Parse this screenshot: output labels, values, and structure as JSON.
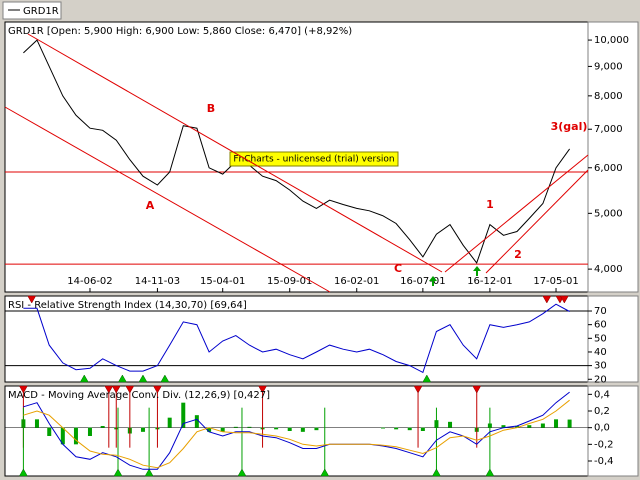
{
  "tab": "GRD1R",
  "chart_data": [
    {
      "type": "line",
      "title": "GRD1R [Open: 5,900  High: 6,900  Low: 5,860  Close: 6,470] (+8,92%)",
      "watermark": "FnCharts - unlicensed (trial) version",
      "annotations": [
        "A",
        "B",
        "C",
        "1",
        "2",
        "3(gal)"
      ],
      "x": [
        "14-01-01",
        "14-02-01",
        "14-03-01",
        "14-04-01",
        "14-05-01",
        "14-06-02",
        "14-07-01",
        "14-08-01",
        "14-09-01",
        "14-10-01",
        "14-11-03",
        "14-12-01",
        "15-01-01",
        "15-02-01",
        "15-03-01",
        "15-04-01",
        "15-05-01",
        "15-06-01",
        "15-07-01",
        "15-08-01",
        "15-09-01",
        "15-10-01",
        "15-11-01",
        "15-12-01",
        "16-01-01",
        "16-02-01",
        "16-03-01",
        "16-04-01",
        "16-05-01",
        "16-06-01",
        "16-07-01",
        "16-08-01",
        "16-09-01",
        "16-10-01",
        "16-11-01",
        "16-12-01",
        "17-01-01",
        "17-02-01",
        "17-03-01",
        "17-04-01",
        "17-05-01",
        "17-06-01"
      ],
      "values": [
        9500,
        10000,
        9000,
        8000,
        7400,
        7030,
        6970,
        6700,
        6200,
        5800,
        5600,
        5900,
        7100,
        7030,
        6000,
        5850,
        6150,
        6060,
        5800,
        5700,
        5490,
        5250,
        5100,
        5270,
        5180,
        5100,
        5050,
        4950,
        4800,
        4500,
        4200,
        4600,
        4780,
        4400,
        4100,
        4780,
        4580,
        4650,
        4900,
        5200,
        6000,
        6470
      ],
      "color": "#000000",
      "xlim": [
        "13-11-20",
        "17-07-13"
      ],
      "xticks": [
        "14-06-02",
        "14-11-03",
        "15-04-01",
        "15-09-01",
        "16-02-01",
        "16-07-01",
        "16-12-01",
        "17-05-01"
      ],
      "ylim": [
        3650,
        10750
      ],
      "log_scale": true,
      "yticks": [
        {
          "value": 4000,
          "label": "4,000"
        },
        {
          "value": 5000,
          "label": "5,000"
        },
        {
          "value": 6000,
          "label": "6,000"
        },
        {
          "value": 7000,
          "label": "7,000"
        },
        {
          "value": 8000,
          "label": "8,000"
        },
        {
          "value": 9000,
          "label": "9,000"
        },
        {
          "value": 10000,
          "label": "10,000"
        }
      ],
      "reference_lines": [
        5900,
        4080
      ],
      "reference_color": "#e00000"
    },
    {
      "type": "line",
      "title": "RSI - Relative Strength Index (14,30,70) [69,64]",
      "x": [
        "14-01-01",
        "14-02-01",
        "14-03-01",
        "14-04-01",
        "14-05-01",
        "14-06-02",
        "14-07-01",
        "14-08-01",
        "14-09-01",
        "14-10-01",
        "14-11-03",
        "14-12-01",
        "15-01-01",
        "15-02-01",
        "15-03-01",
        "15-04-01",
        "15-05-01",
        "15-06-01",
        "15-07-01",
        "15-08-01",
        "15-09-01",
        "15-10-01",
        "15-11-01",
        "15-12-01",
        "16-01-01",
        "16-02-01",
        "16-03-01",
        "16-04-01",
        "16-05-01",
        "16-06-01",
        "16-07-01",
        "16-08-01",
        "16-09-01",
        "16-10-01",
        "16-11-01",
        "16-12-01",
        "17-01-01",
        "17-02-01",
        "17-03-01",
        "17-04-01",
        "17-05-01",
        "17-06-01"
      ],
      "values": [
        72,
        72,
        45,
        32,
        27,
        28,
        35,
        30,
        26,
        26,
        30,
        45,
        62,
        60,
        40,
        48,
        52,
        45,
        40,
        42,
        38,
        35,
        40,
        45,
        42,
        40,
        42,
        38,
        33,
        30,
        25,
        55,
        60,
        45,
        35,
        60,
        58,
        60,
        62,
        68,
        75,
        69.64
      ],
      "color": "#0000cc",
      "xlim": [
        "13-11-20",
        "17-07-13"
      ],
      "ylim": [
        18,
        81
      ],
      "yticks": [
        20,
        30,
        40,
        50,
        60,
        70
      ],
      "reference_lines": [
        30,
        70
      ],
      "reference_color": "#000000",
      "sell_signals": [
        "14-01-20",
        "17-04-10",
        "17-05-10",
        "17-05-20"
      ],
      "buy_signals": [
        "14-05-20",
        "14-08-15",
        "14-10-01",
        "14-11-20",
        "16-07-10"
      ]
    },
    {
      "type": "macd",
      "title": "MACD - Moving Average Conv. Div. (12,26,9) [0,427]",
      "x": [
        "14-01-01",
        "14-02-01",
        "14-03-01",
        "14-04-01",
        "14-05-01",
        "14-06-02",
        "14-07-01",
        "14-08-01",
        "14-09-01",
        "14-10-01",
        "14-11-03",
        "14-12-01",
        "15-01-01",
        "15-02-01",
        "15-03-01",
        "15-04-01",
        "15-05-01",
        "15-06-01",
        "15-07-01",
        "15-08-01",
        "15-09-01",
        "15-10-01",
        "15-11-01",
        "15-12-01",
        "16-01-01",
        "16-02-01",
        "16-03-01",
        "16-04-01",
        "16-05-01",
        "16-06-01",
        "16-07-01",
        "16-08-01",
        "16-09-01",
        "16-10-01",
        "16-11-01",
        "16-12-01",
        "17-01-01",
        "17-02-01",
        "17-03-01",
        "17-04-01",
        "17-05-01",
        "17-06-01"
      ],
      "series": [
        {
          "color": "#0000cc",
          "values": [
            0.25,
            0.3,
            0.05,
            -0.2,
            -0.35,
            -0.38,
            -0.3,
            -0.35,
            -0.45,
            -0.5,
            -0.5,
            -0.3,
            0.05,
            0.1,
            -0.05,
            -0.1,
            -0.05,
            -0.05,
            -0.1,
            -0.12,
            -0.18,
            -0.25,
            -0.25,
            -0.2,
            -0.2,
            -0.2,
            -0.2,
            -0.22,
            -0.25,
            -0.3,
            -0.35,
            -0.15,
            -0.05,
            -0.1,
            -0.2,
            -0.05,
            0.0,
            0.02,
            0.08,
            0.15,
            0.3,
            0.427
          ]
        },
        {
          "color": "#e8a000",
          "values": [
            0.15,
            0.2,
            0.15,
            0.0,
            -0.15,
            -0.28,
            -0.32,
            -0.33,
            -0.38,
            -0.45,
            -0.48,
            -0.42,
            -0.25,
            -0.05,
            0.0,
            -0.05,
            -0.06,
            -0.06,
            -0.08,
            -0.1,
            -0.14,
            -0.2,
            -0.22,
            -0.2,
            -0.2,
            -0.2,
            -0.2,
            -0.21,
            -0.23,
            -0.27,
            -0.31,
            -0.24,
            -0.12,
            -0.1,
            -0.15,
            -0.1,
            -0.03,
            0.0,
            0.05,
            0.1,
            0.2,
            0.33
          ]
        }
      ],
      "histogram": {
        "color": "#00a000",
        "values": [
          0.1,
          0.1,
          -0.1,
          -0.2,
          -0.2,
          -0.1,
          0.02,
          -0.02,
          -0.07,
          -0.05,
          -0.02,
          0.12,
          0.3,
          0.15,
          -0.05,
          -0.05,
          0.01,
          0.01,
          -0.02,
          -0.02,
          -0.04,
          -0.05,
          -0.03,
          0,
          0,
          0,
          0,
          -0.01,
          -0.02,
          -0.03,
          -0.04,
          0.09,
          0.07,
          0,
          -0.05,
          0.05,
          0.03,
          0.02,
          0.03,
          0.05,
          0.1,
          0.097
        ]
      },
      "xlim": [
        "13-11-20",
        "17-07-13"
      ],
      "ylim": [
        -0.58,
        0.5
      ],
      "yticks": [
        {
          "value": -0.4,
          "label": "-0,4"
        },
        {
          "value": -0.2,
          "label": "-0,2"
        },
        {
          "value": 0,
          "label": "0,0"
        },
        {
          "value": 0.2,
          "label": "0,2"
        },
        {
          "value": 0.4,
          "label": "0,4"
        }
      ],
      "sell_signals": [
        "14-01-01",
        "14-07-15",
        "14-08-01",
        "14-09-01",
        "14-11-03",
        "15-07-01",
        "16-06-20",
        "16-11-01"
      ],
      "buy_signals": [
        "14-01-01",
        "14-08-05",
        "14-10-15",
        "15-05-15",
        "15-11-20",
        "16-08-01",
        "16-12-01"
      ]
    }
  ]
}
